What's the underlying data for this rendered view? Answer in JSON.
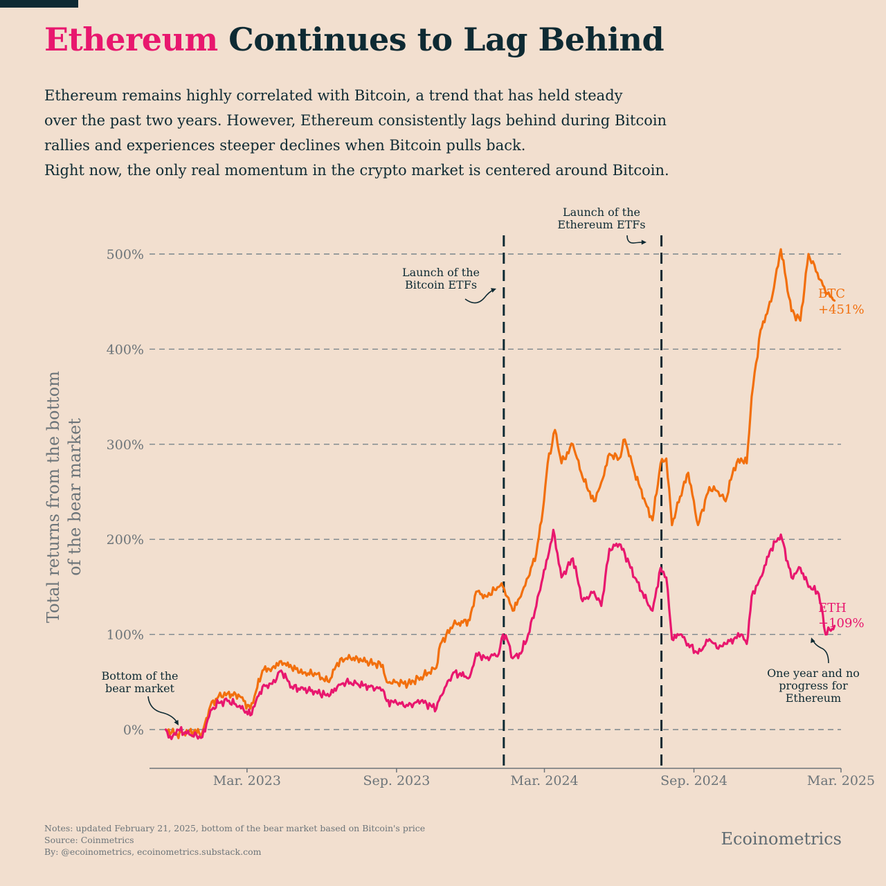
{
  "title": {
    "highlight": "Ethereum",
    "rest": " Continues to Lag Behind"
  },
  "subtitle_lines": [
    "Ethereum remains highly correlated with Bitcoin, a trend that has held steady",
    "over the past two years. However, Ethereum consistently lags behind during Bitcoin",
    "rallies and experiences steeper declines when Bitcoin pulls back.",
    "Right now, the only real momentum in the crypto market is centered around Bitcoin."
  ],
  "colors": {
    "btc": "#f26f0d",
    "eth": "#e8176e",
    "text": "#0e2a33",
    "axis": "#6c7479",
    "background": "#f2dfcf"
  },
  "chart_data": {
    "type": "line",
    "ylabel_lines": [
      "Total returns from the bottom",
      "of the bear market"
    ],
    "ylim": [
      -40,
      520
    ],
    "yticks": [
      0,
      100,
      200,
      300,
      400,
      500
    ],
    "ytick_labels": [
      "0%",
      "100%",
      "200%",
      "300%",
      "400%",
      "500%"
    ],
    "xlim": [
      "2022-11-01",
      "2025-03-01"
    ],
    "xticks": [
      "2023-03-01",
      "2023-09-01",
      "2024-03-01",
      "2024-09-01",
      "2025-03-01"
    ],
    "xtick_labels": [
      "Mar. 2023",
      "Sep. 2023",
      "Mar. 2024",
      "Sep. 2024",
      "Mar. 2025"
    ],
    "grid": "horizontal-dashed",
    "series": [
      {
        "name": "BTC",
        "end_label": "+451%",
        "points": [
          [
            "2022-11-21",
            0
          ],
          [
            "2022-12-05",
            -5
          ],
          [
            "2022-12-20",
            -2
          ],
          [
            "2023-01-05",
            -3
          ],
          [
            "2023-01-15",
            25
          ],
          [
            "2023-01-25",
            35
          ],
          [
            "2023-02-05",
            38
          ],
          [
            "2023-02-20",
            35
          ],
          [
            "2023-03-05",
            22
          ],
          [
            "2023-03-12",
            40
          ],
          [
            "2023-03-20",
            62
          ],
          [
            "2023-04-01",
            65
          ],
          [
            "2023-04-12",
            72
          ],
          [
            "2023-04-25",
            65
          ],
          [
            "2023-05-10",
            60
          ],
          [
            "2023-05-25",
            58
          ],
          [
            "2023-06-10",
            50
          ],
          [
            "2023-06-20",
            70
          ],
          [
            "2023-07-01",
            75
          ],
          [
            "2023-07-15",
            75
          ],
          [
            "2023-07-30",
            70
          ],
          [
            "2023-08-15",
            68
          ],
          [
            "2023-08-20",
            50
          ],
          [
            "2023-09-01",
            50
          ],
          [
            "2023-09-15",
            48
          ],
          [
            "2023-10-01",
            55
          ],
          [
            "2023-10-20",
            65
          ],
          [
            "2023-10-25",
            90
          ],
          [
            "2023-11-10",
            110
          ],
          [
            "2023-11-30",
            115
          ],
          [
            "2023-12-08",
            145
          ],
          [
            "2023-12-20",
            140
          ],
          [
            "2024-01-05",
            150
          ],
          [
            "2024-01-10",
            150
          ],
          [
            "2024-01-15",
            140
          ],
          [
            "2024-01-22",
            125
          ],
          [
            "2024-02-01",
            140
          ],
          [
            "2024-02-10",
            160
          ],
          [
            "2024-02-20",
            185
          ],
          [
            "2024-02-28",
            230
          ],
          [
            "2024-03-05",
            280
          ],
          [
            "2024-03-14",
            315
          ],
          [
            "2024-03-22",
            280
          ],
          [
            "2024-04-05",
            300
          ],
          [
            "2024-04-17",
            265
          ],
          [
            "2024-05-01",
            240
          ],
          [
            "2024-05-10",
            260
          ],
          [
            "2024-05-20",
            290
          ],
          [
            "2024-06-01",
            285
          ],
          [
            "2024-06-08",
            305
          ],
          [
            "2024-06-20",
            270
          ],
          [
            "2024-07-05",
            235
          ],
          [
            "2024-07-12",
            220
          ],
          [
            "2024-07-22",
            280
          ],
          [
            "2024-07-29",
            285
          ],
          [
            "2024-08-05",
            215
          ],
          [
            "2024-08-15",
            245
          ],
          [
            "2024-08-25",
            270
          ],
          [
            "2024-09-06",
            215
          ],
          [
            "2024-09-20",
            255
          ],
          [
            "2024-10-01",
            250
          ],
          [
            "2024-10-10",
            240
          ],
          [
            "2024-10-20",
            275
          ],
          [
            "2024-10-29",
            285
          ],
          [
            "2024-11-05",
            280
          ],
          [
            "2024-11-11",
            350
          ],
          [
            "2024-11-22",
            420
          ],
          [
            "2024-12-05",
            450
          ],
          [
            "2024-12-17",
            505
          ],
          [
            "2024-12-30",
            440
          ],
          [
            "2025-01-10",
            430
          ],
          [
            "2025-01-20",
            500
          ],
          [
            "2025-01-31",
            480
          ],
          [
            "2025-02-10",
            460
          ],
          [
            "2025-02-21",
            451
          ]
        ]
      },
      {
        "name": "ETH",
        "end_label": "+109%",
        "points": [
          [
            "2022-11-21",
            0
          ],
          [
            "2022-11-28",
            -10
          ],
          [
            "2022-12-05",
            0
          ],
          [
            "2022-12-20",
            -5
          ],
          [
            "2023-01-05",
            -8
          ],
          [
            "2023-01-15",
            20
          ],
          [
            "2023-01-25",
            28
          ],
          [
            "2023-02-05",
            30
          ],
          [
            "2023-02-20",
            25
          ],
          [
            "2023-03-05",
            15
          ],
          [
            "2023-03-12",
            30
          ],
          [
            "2023-03-20",
            45
          ],
          [
            "2023-04-01",
            48
          ],
          [
            "2023-04-12",
            62
          ],
          [
            "2023-04-25",
            45
          ],
          [
            "2023-05-10",
            42
          ],
          [
            "2023-05-25",
            40
          ],
          [
            "2023-06-10",
            35
          ],
          [
            "2023-06-20",
            45
          ],
          [
            "2023-07-01",
            50
          ],
          [
            "2023-07-15",
            48
          ],
          [
            "2023-07-30",
            45
          ],
          [
            "2023-08-15",
            42
          ],
          [
            "2023-08-20",
            30
          ],
          [
            "2023-09-01",
            28
          ],
          [
            "2023-09-15",
            25
          ],
          [
            "2023-10-01",
            30
          ],
          [
            "2023-10-20",
            22
          ],
          [
            "2023-10-25",
            35
          ],
          [
            "2023-11-10",
            60
          ],
          [
            "2023-11-30",
            55
          ],
          [
            "2023-12-08",
            80
          ],
          [
            "2023-12-20",
            75
          ],
          [
            "2024-01-05",
            80
          ],
          [
            "2024-01-10",
            100
          ],
          [
            "2024-01-15",
            95
          ],
          [
            "2024-01-22",
            75
          ],
          [
            "2024-02-01",
            80
          ],
          [
            "2024-02-10",
            100
          ],
          [
            "2024-02-20",
            130
          ],
          [
            "2024-02-28",
            160
          ],
          [
            "2024-03-05",
            180
          ],
          [
            "2024-03-12",
            210
          ],
          [
            "2024-03-22",
            160
          ],
          [
            "2024-04-05",
            180
          ],
          [
            "2024-04-17",
            135
          ],
          [
            "2024-05-01",
            145
          ],
          [
            "2024-05-10",
            130
          ],
          [
            "2024-05-20",
            190
          ],
          [
            "2024-06-01",
            195
          ],
          [
            "2024-06-08",
            185
          ],
          [
            "2024-06-20",
            160
          ],
          [
            "2024-07-05",
            135
          ],
          [
            "2024-07-12",
            125
          ],
          [
            "2024-07-22",
            170
          ],
          [
            "2024-07-29",
            160
          ],
          [
            "2024-08-05",
            95
          ],
          [
            "2024-08-15",
            100
          ],
          [
            "2024-08-25",
            90
          ],
          [
            "2024-09-06",
            80
          ],
          [
            "2024-09-20",
            95
          ],
          [
            "2024-10-01",
            85
          ],
          [
            "2024-10-10",
            90
          ],
          [
            "2024-10-20",
            95
          ],
          [
            "2024-10-29",
            100
          ],
          [
            "2024-11-05",
            90
          ],
          [
            "2024-11-11",
            140
          ],
          [
            "2024-11-22",
            160
          ],
          [
            "2024-12-05",
            190
          ],
          [
            "2024-12-17",
            205
          ],
          [
            "2024-12-30",
            160
          ],
          [
            "2025-01-10",
            170
          ],
          [
            "2025-01-20",
            150
          ],
          [
            "2025-01-31",
            145
          ],
          [
            "2025-02-05",
            130
          ],
          [
            "2025-02-10",
            100
          ],
          [
            "2025-02-15",
            105
          ],
          [
            "2025-02-21",
            109
          ]
        ]
      }
    ],
    "vlines": [
      {
        "x": "2024-01-11",
        "label_lines": [
          "Launch of the",
          "Bitcoin ETFs"
        ]
      },
      {
        "x": "2024-07-23",
        "label_lines": [
          "Launch of the",
          "Ethereum ETFs"
        ]
      }
    ],
    "annotations": [
      {
        "target": [
          "2022-11-21",
          0
        ],
        "label_lines": [
          "Bottom of the",
          "bear market"
        ]
      },
      {
        "target": [
          "2025-02-21",
          95
        ],
        "label_lines": [
          "One year and no",
          "progress for",
          "Ethereum"
        ]
      }
    ]
  },
  "notes_lines": [
    "Notes: updated February 21, 2025, bottom of the bear market based on Bitcoin's price",
    "Source: Coinmetrics",
    "By: @ecoinometrics, ecoinometrics.substack.com"
  ],
  "brand": "Ecoinometrics"
}
